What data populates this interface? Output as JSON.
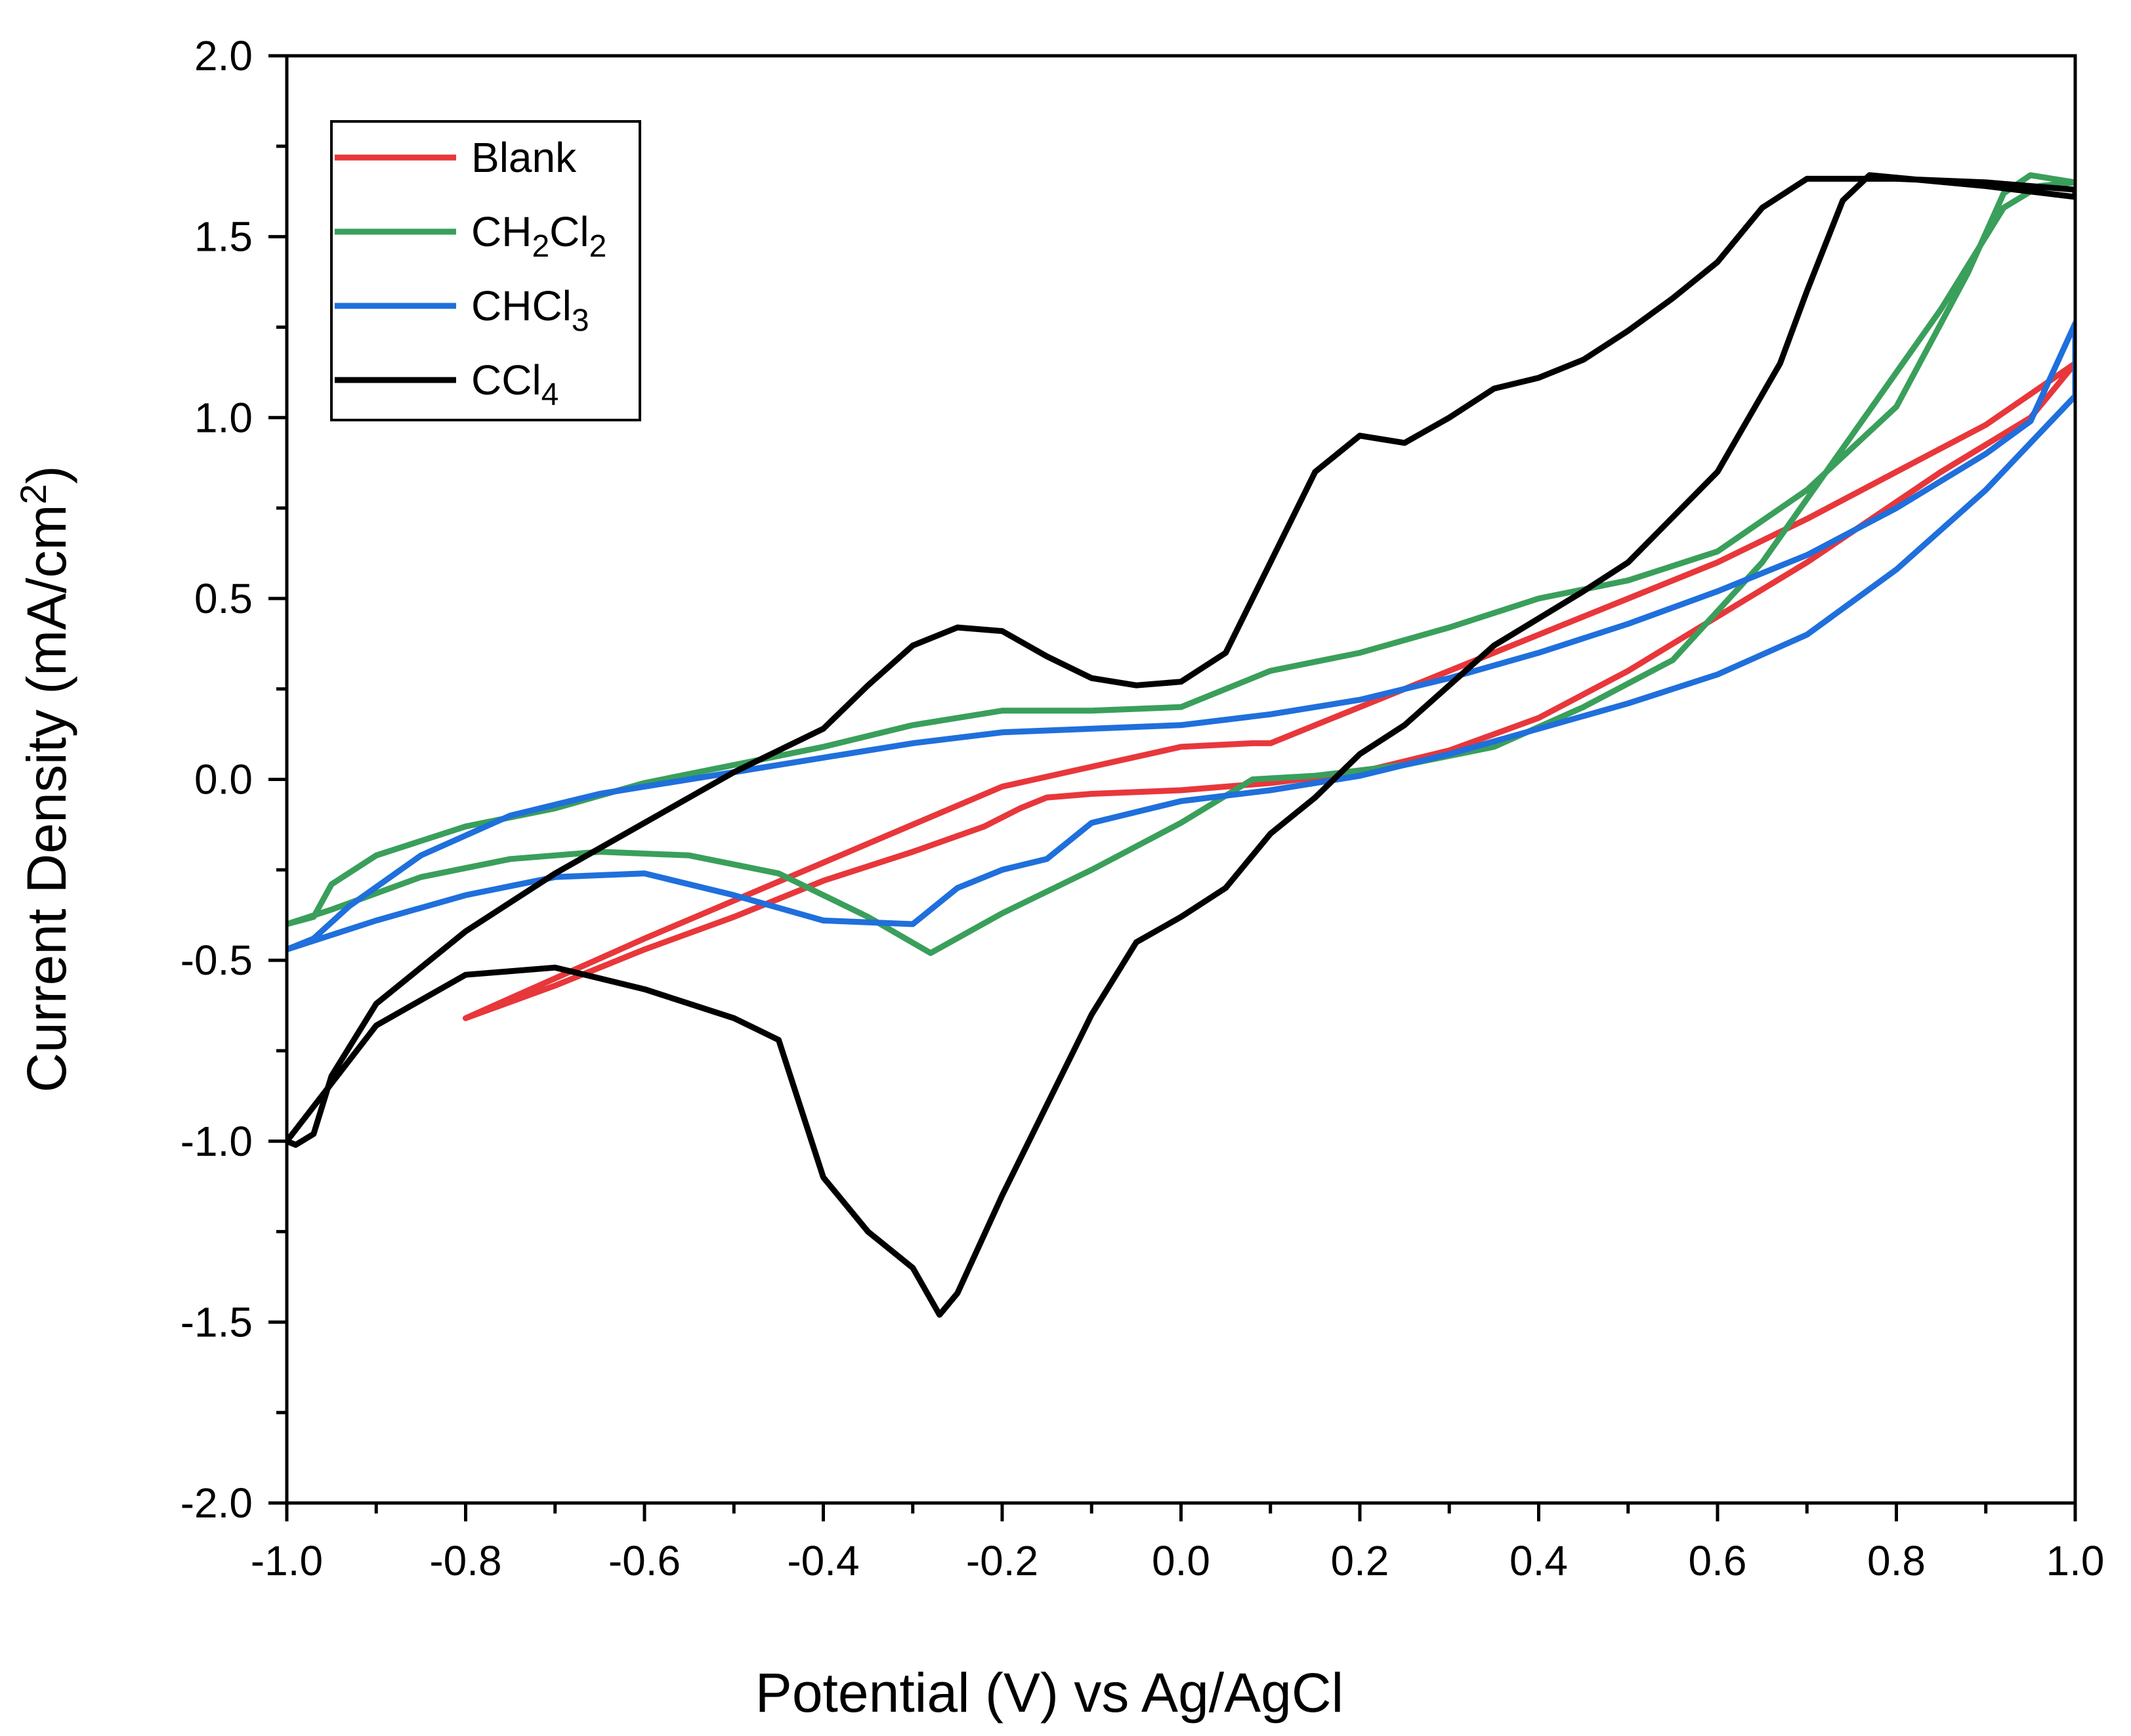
{
  "chart_data": {
    "type": "line",
    "title": "",
    "xlabel": "Potential (V) vs Ag/AgCl",
    "ylabel_parts": [
      "Current Density (mA/cm",
      "2",
      ")"
    ],
    "xlim": [
      -1.0,
      1.0
    ],
    "ylim": [
      -2.0,
      2.0
    ],
    "x_ticks": [
      "-1.0",
      "-0.8",
      "-0.6",
      "-0.4",
      "-0.2",
      "0.0",
      "0.2",
      "0.4",
      "0.6",
      "0.8",
      "1.0"
    ],
    "y_ticks": [
      "-2.0",
      "-1.5",
      "-1.0",
      "-0.5",
      "0.0",
      "0.5",
      "1.0",
      "1.5",
      "2.0"
    ],
    "legend": {
      "position": "top-left",
      "entries": [
        {
          "parts": [
            [
              "Blank",
              false
            ]
          ]
        },
        {
          "parts": [
            [
              "CH",
              false
            ],
            [
              "2",
              true
            ],
            [
              "Cl",
              false
            ],
            [
              "2",
              true
            ]
          ]
        },
        {
          "parts": [
            [
              "CHCl",
              false
            ],
            [
              "3",
              true
            ]
          ]
        },
        {
          "parts": [
            [
              "CCl",
              false
            ],
            [
              "4",
              true
            ]
          ]
        }
      ]
    },
    "series": [
      {
        "name": "Blank",
        "color": "#e8373b",
        "points": [
          [
            -0.8,
            -0.66
          ],
          [
            -0.6,
            -0.44
          ],
          [
            -0.4,
            -0.23
          ],
          [
            -0.2,
            -0.02
          ],
          [
            0.0,
            0.09
          ],
          [
            0.08,
            0.1
          ],
          [
            0.1,
            0.1
          ],
          [
            0.2,
            0.2
          ],
          [
            0.3,
            0.3
          ],
          [
            0.4,
            0.4
          ],
          [
            0.5,
            0.5
          ],
          [
            0.6,
            0.6
          ],
          [
            0.7,
            0.72
          ],
          [
            0.8,
            0.85
          ],
          [
            0.9,
            0.98
          ],
          [
            1.0,
            1.15
          ],
          [
            0.95,
            1.0
          ],
          [
            0.85,
            0.85
          ],
          [
            0.7,
            0.6
          ],
          [
            0.6,
            0.45
          ],
          [
            0.5,
            0.3
          ],
          [
            0.4,
            0.17
          ],
          [
            0.3,
            0.08
          ],
          [
            0.2,
            0.02
          ],
          [
            0.1,
            -0.01
          ],
          [
            0.0,
            -0.03
          ],
          [
            -0.1,
            -0.04
          ],
          [
            -0.15,
            -0.05
          ],
          [
            -0.18,
            -0.08
          ],
          [
            -0.22,
            -0.13
          ],
          [
            -0.3,
            -0.2
          ],
          [
            -0.4,
            -0.28
          ],
          [
            -0.5,
            -0.38
          ],
          [
            -0.6,
            -0.47
          ],
          [
            -0.7,
            -0.57
          ],
          [
            -0.8,
            -0.66
          ]
        ]
      },
      {
        "name": "CH2Cl2",
        "color": "#3a9f5b",
        "points": [
          [
            -1.0,
            -0.4
          ],
          [
            -0.97,
            -0.38
          ],
          [
            -0.95,
            -0.29
          ],
          [
            -0.9,
            -0.21
          ],
          [
            -0.8,
            -0.13
          ],
          [
            -0.7,
            -0.08
          ],
          [
            -0.6,
            -0.01
          ],
          [
            -0.5,
            0.04
          ],
          [
            -0.4,
            0.09
          ],
          [
            -0.3,
            0.15
          ],
          [
            -0.2,
            0.19
          ],
          [
            -0.1,
            0.19
          ],
          [
            0.0,
            0.2
          ],
          [
            0.1,
            0.3
          ],
          [
            0.2,
            0.35
          ],
          [
            0.3,
            0.42
          ],
          [
            0.4,
            0.5
          ],
          [
            0.5,
            0.55
          ],
          [
            0.6,
            0.63
          ],
          [
            0.7,
            0.8
          ],
          [
            0.8,
            1.03
          ],
          [
            0.88,
            1.4
          ],
          [
            0.92,
            1.62
          ],
          [
            0.95,
            1.67
          ],
          [
            1.0,
            1.65
          ],
          [
            0.96,
            1.64
          ],
          [
            0.92,
            1.58
          ],
          [
            0.85,
            1.3
          ],
          [
            0.75,
            0.95
          ],
          [
            0.65,
            0.6
          ],
          [
            0.55,
            0.33
          ],
          [
            0.45,
            0.2
          ],
          [
            0.35,
            0.09
          ],
          [
            0.25,
            0.04
          ],
          [
            0.15,
            0.01
          ],
          [
            0.08,
            0.0
          ],
          [
            0.0,
            -0.12
          ],
          [
            -0.1,
            -0.25
          ],
          [
            -0.2,
            -0.37
          ],
          [
            -0.28,
            -0.48
          ],
          [
            -0.35,
            -0.38
          ],
          [
            -0.45,
            -0.26
          ],
          [
            -0.55,
            -0.21
          ],
          [
            -0.65,
            -0.2
          ],
          [
            -0.75,
            -0.22
          ],
          [
            -0.85,
            -0.27
          ],
          [
            -0.95,
            -0.36
          ],
          [
            -1.0,
            -0.4
          ]
        ]
      },
      {
        "name": "CHCl3",
        "color": "#1f6fdc",
        "points": [
          [
            -1.0,
            -0.47
          ],
          [
            -0.97,
            -0.44
          ],
          [
            -0.93,
            -0.35
          ],
          [
            -0.85,
            -0.21
          ],
          [
            -0.75,
            -0.1
          ],
          [
            -0.65,
            -0.04
          ],
          [
            -0.5,
            0.02
          ],
          [
            -0.4,
            0.06
          ],
          [
            -0.3,
            0.1
          ],
          [
            -0.2,
            0.13
          ],
          [
            -0.1,
            0.14
          ],
          [
            0.0,
            0.15
          ],
          [
            0.1,
            0.18
          ],
          [
            0.2,
            0.22
          ],
          [
            0.3,
            0.28
          ],
          [
            0.4,
            0.35
          ],
          [
            0.5,
            0.43
          ],
          [
            0.6,
            0.52
          ],
          [
            0.7,
            0.62
          ],
          [
            0.8,
            0.75
          ],
          [
            0.9,
            0.9
          ],
          [
            0.95,
            0.99
          ],
          [
            1.0,
            1.26
          ],
          [
            1.0,
            1.06
          ],
          [
            0.95,
            0.93
          ],
          [
            0.9,
            0.8
          ],
          [
            0.8,
            0.58
          ],
          [
            0.7,
            0.4
          ],
          [
            0.6,
            0.29
          ],
          [
            0.5,
            0.21
          ],
          [
            0.4,
            0.14
          ],
          [
            0.3,
            0.07
          ],
          [
            0.2,
            0.01
          ],
          [
            0.1,
            -0.03
          ],
          [
            0.0,
            -0.06
          ],
          [
            -0.05,
            -0.09
          ],
          [
            -0.1,
            -0.12
          ],
          [
            -0.15,
            -0.22
          ],
          [
            -0.2,
            -0.25
          ],
          [
            -0.25,
            -0.3
          ],
          [
            -0.3,
            -0.4
          ],
          [
            -0.4,
            -0.39
          ],
          [
            -0.5,
            -0.32
          ],
          [
            -0.6,
            -0.26
          ],
          [
            -0.7,
            -0.27
          ],
          [
            -0.8,
            -0.32
          ],
          [
            -0.9,
            -0.39
          ],
          [
            -1.0,
            -0.47
          ]
        ]
      },
      {
        "name": "CCl4",
        "color": "#000000",
        "points": [
          [
            -1.0,
            -1.0
          ],
          [
            -0.99,
            -1.01
          ],
          [
            -0.97,
            -0.98
          ],
          [
            -0.95,
            -0.82
          ],
          [
            -0.9,
            -0.62
          ],
          [
            -0.8,
            -0.42
          ],
          [
            -0.7,
            -0.26
          ],
          [
            -0.6,
            -0.12
          ],
          [
            -0.5,
            0.02
          ],
          [
            -0.4,
            0.14
          ],
          [
            -0.35,
            0.26
          ],
          [
            -0.3,
            0.37
          ],
          [
            -0.25,
            0.42
          ],
          [
            -0.2,
            0.41
          ],
          [
            -0.15,
            0.34
          ],
          [
            -0.1,
            0.28
          ],
          [
            -0.05,
            0.26
          ],
          [
            0.0,
            0.27
          ],
          [
            0.05,
            0.35
          ],
          [
            0.1,
            0.6
          ],
          [
            0.15,
            0.85
          ],
          [
            0.2,
            0.95
          ],
          [
            0.25,
            0.93
          ],
          [
            0.3,
            1.0
          ],
          [
            0.35,
            1.08
          ],
          [
            0.4,
            1.11
          ],
          [
            0.45,
            1.16
          ],
          [
            0.5,
            1.24
          ],
          [
            0.55,
            1.33
          ],
          [
            0.6,
            1.43
          ],
          [
            0.65,
            1.58
          ],
          [
            0.7,
            1.66
          ],
          [
            0.8,
            1.66
          ],
          [
            0.9,
            1.65
          ],
          [
            1.0,
            1.63
          ],
          [
            1.0,
            1.61
          ],
          [
            0.9,
            1.64
          ],
          [
            0.77,
            1.67
          ],
          [
            0.74,
            1.6
          ],
          [
            0.7,
            1.35
          ],
          [
            0.67,
            1.15
          ],
          [
            0.6,
            0.85
          ],
          [
            0.5,
            0.6
          ],
          [
            0.45,
            0.52
          ],
          [
            0.35,
            0.37
          ],
          [
            0.25,
            0.15
          ],
          [
            0.2,
            0.07
          ],
          [
            0.15,
            -0.05
          ],
          [
            0.1,
            -0.15
          ],
          [
            0.05,
            -0.3
          ],
          [
            0.0,
            -0.38
          ],
          [
            -0.05,
            -0.45
          ],
          [
            -0.1,
            -0.65
          ],
          [
            -0.15,
            -0.9
          ],
          [
            -0.2,
            -1.15
          ],
          [
            -0.25,
            -1.42
          ],
          [
            -0.27,
            -1.48
          ],
          [
            -0.3,
            -1.35
          ],
          [
            -0.35,
            -1.25
          ],
          [
            -0.4,
            -1.1
          ],
          [
            -0.45,
            -0.72
          ],
          [
            -0.5,
            -0.66
          ],
          [
            -0.6,
            -0.58
          ],
          [
            -0.7,
            -0.52
          ],
          [
            -0.8,
            -0.54
          ],
          [
            -0.9,
            -0.68
          ],
          [
            -1.0,
            -1.0
          ]
        ]
      }
    ]
  }
}
